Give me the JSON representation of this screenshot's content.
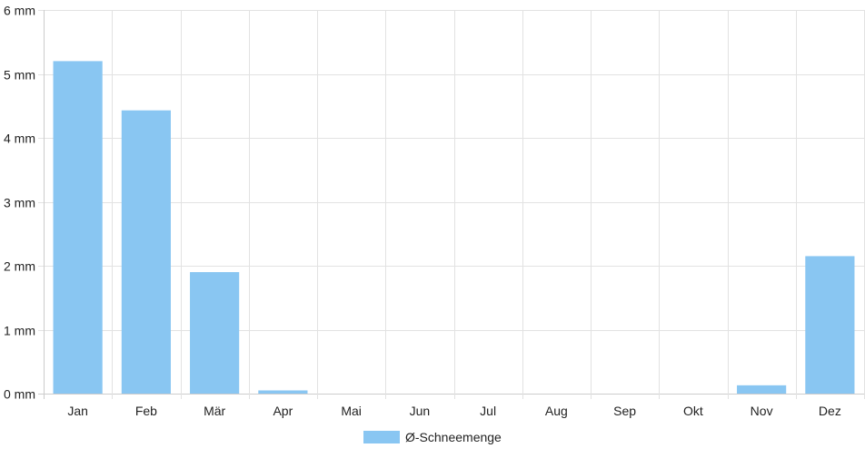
{
  "chart_data": {
    "type": "bar",
    "categories": [
      "Jan",
      "Feb",
      "Mär",
      "Apr",
      "Mai",
      "Jun",
      "Jul",
      "Aug",
      "Sep",
      "Okt",
      "Nov",
      "Dez"
    ],
    "series": [
      {
        "name": "Ø-Schneemenge",
        "values": [
          5.2,
          4.43,
          1.9,
          0.05,
          0,
          0,
          0,
          0,
          0,
          0,
          0.13,
          2.15
        ]
      }
    ],
    "y_unit": "mm",
    "ylim": [
      0,
      6
    ],
    "y_ticks": [
      0,
      1,
      2,
      3,
      4,
      5,
      6
    ],
    "y_tick_labels": [
      "0 mm",
      "1 mm",
      "2 mm",
      "3 mm",
      "4 mm",
      "5 mm",
      "6 mm"
    ],
    "grid": true,
    "legend_position": "bottom-center",
    "colors": {
      "bar": "#89c6f2",
      "grid": "#e2e2e2",
      "axis": "#cccccc",
      "text": "#222222"
    }
  }
}
